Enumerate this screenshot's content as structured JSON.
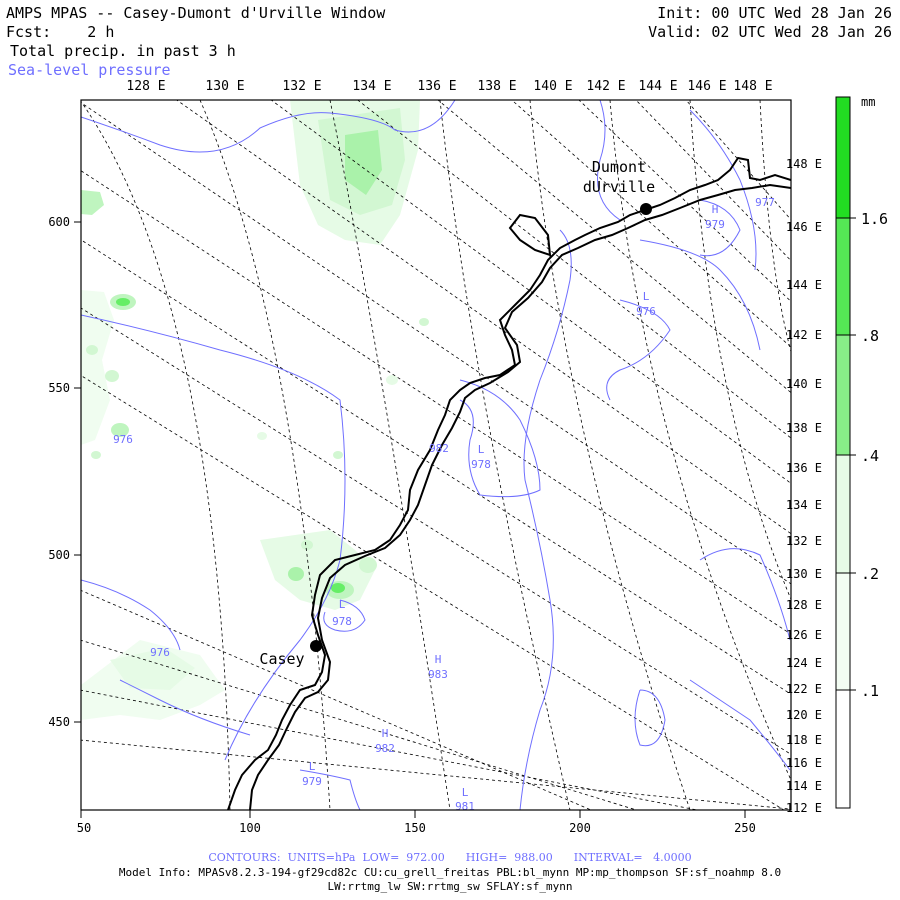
{
  "header": {
    "title": "AMPS MPAS -- Casey-Dumont d'Urville Window",
    "forecast": "Fcst:    2 h",
    "field": "Total precip. in past 3 h",
    "overlay": "Sea-level pressure",
    "init": "Init: 00 UTC Wed 28 Jan 26",
    "valid": "Valid: 02 UTC Wed 28 Jan 26"
  },
  "colors": {
    "contour": "#6f6fff",
    "coast": "#000000",
    "precip": [
      "#ffffff",
      "#e6fbe6",
      "#bff5bf",
      "#66ee66",
      "#22dd22"
    ]
  },
  "map": {
    "top_lon_labels": [
      "128 E",
      "130 E",
      "132 E",
      "134 E",
      "136 E",
      "138 E",
      "140 E",
      "142 E",
      "144 E",
      "146 E",
      "148 E"
    ],
    "right_lon_labels": [
      "148 E",
      "146 E",
      "144 E",
      "142 E",
      "140 E",
      "138 E",
      "136 E",
      "134 E",
      "132 E",
      "130 E",
      "128 E",
      "126 E",
      "124 E",
      "122 E",
      "120 E",
      "118 E",
      "116 E",
      "114 E",
      "112 E"
    ],
    "x_ticks": [
      "50",
      "100",
      "150",
      "200",
      "250"
    ],
    "y_ticks": [
      "600",
      "550",
      "500",
      "450"
    ],
    "stations": [
      {
        "name_lines": [
          "Dumont",
          "dUrville"
        ]
      },
      {
        "name_lines": [
          "Casey"
        ]
      }
    ],
    "pressure_labels": [
      {
        "letter": "H",
        "value": "979"
      },
      {
        "letter": "",
        "value": "977"
      },
      {
        "letter": "L",
        "value": "976"
      },
      {
        "letter": "L",
        "value": "978"
      },
      {
        "letter": "",
        "value": "982"
      },
      {
        "letter": "",
        "value": "976"
      },
      {
        "letter": "L",
        "value": "978"
      },
      {
        "letter": "",
        "value": "976"
      },
      {
        "letter": "H",
        "value": "983"
      },
      {
        "letter": "H",
        "value": "982"
      },
      {
        "letter": "L",
        "value": "979"
      },
      {
        "letter": "L",
        "value": "981"
      }
    ]
  },
  "colorbar": {
    "unit": "mm",
    "labels": [
      "1.6",
      ".8",
      ".4",
      ".2",
      ".1"
    ]
  },
  "footer": {
    "contours": "CONTOURS:  UNITS=hPa  LOW=  972.00      HIGH=  988.00      INTERVAL=   4.0000",
    "model_info": "Model Info: MPASv8.2.3-194-gf29cd82c CU:cu_grell_freitas PBL:bl_mynn MP:mp_thompson SF:sf_noahmp 8.0",
    "model_info2": "LW:rrtmg_lw SW:rrtmg_sw SFLAY:sf_mynn"
  }
}
